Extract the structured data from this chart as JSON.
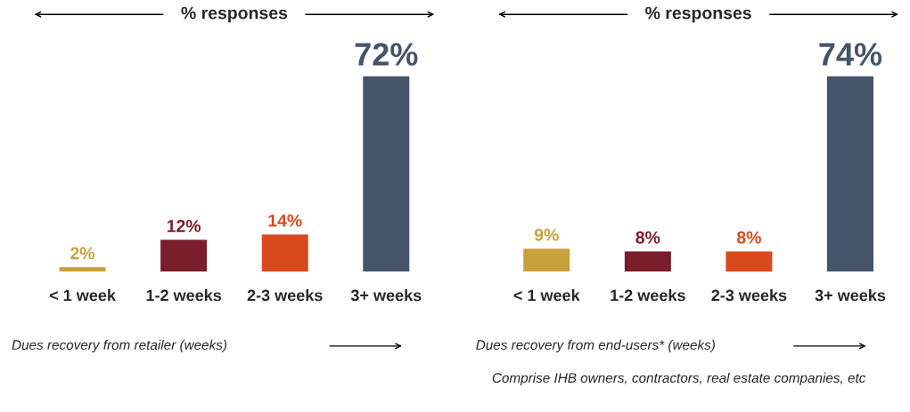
{
  "chart_data": [
    {
      "type": "bar",
      "title": "% responses",
      "xlabel": "Dues recovery from retailer (weeks)",
      "categories": [
        "< 1 week",
        "1-2 weeks",
        "2-3 weeks",
        "3+ weeks"
      ],
      "values": [
        2,
        12,
        14,
        72
      ],
      "colors": [
        "#c9a03a",
        "#7b1e2b",
        "#d84a1e",
        "#44546a"
      ],
      "value_labels": [
        "2%",
        "12%",
        "14%",
        "72%"
      ],
      "tick_labels": "x",
      "grid": false,
      "legend": false
    },
    {
      "type": "bar",
      "title": "% responses",
      "xlabel": "Dues recovery from end-users* (weeks)",
      "categories": [
        "< 1 week",
        "1-2 weeks",
        "2-3 weeks",
        "3+ weeks"
      ],
      "values": [
        9,
        8,
        8,
        74
      ],
      "colors": [
        "#c9a03a",
        "#7b1e2b",
        "#d84a1e",
        "#44546a"
      ],
      "value_labels": [
        "9%",
        "8%",
        "8%",
        "74%"
      ],
      "tick_labels": "x",
      "grid": false,
      "legend": false,
      "annotations": [
        "Comprise IHB owners, contractors, real estate companies, etc"
      ]
    }
  ]
}
